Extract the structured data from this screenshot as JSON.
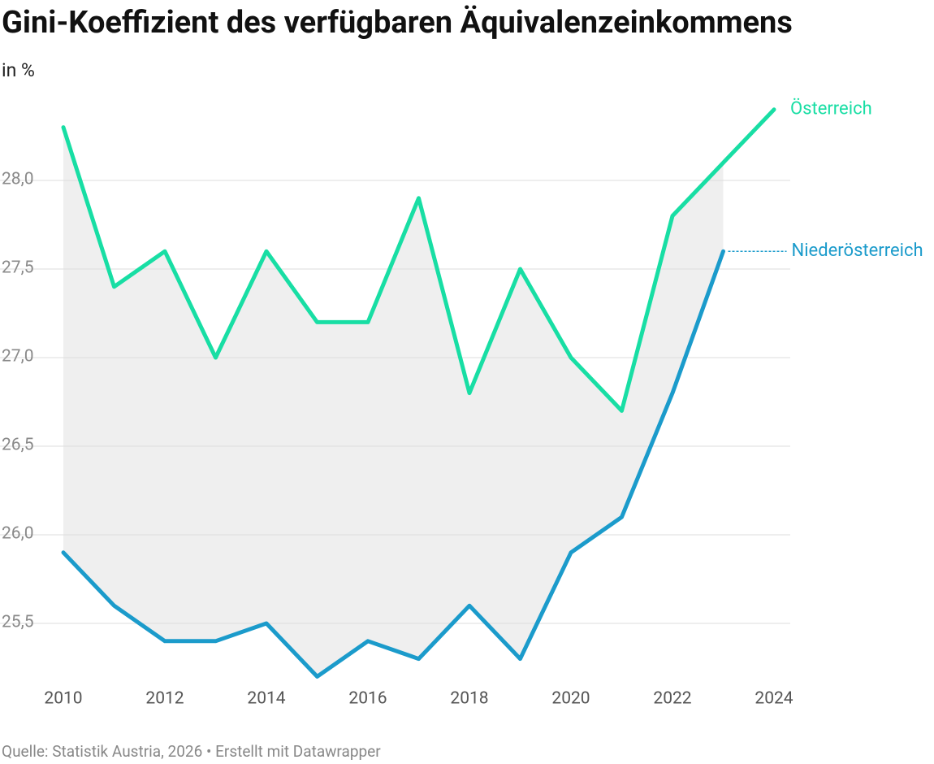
{
  "chart_data": {
    "type": "line",
    "title": "Gini-Koeffizient des verfügbaren Äquivalenzeinkommens",
    "subtitle": "in %",
    "source": "Quelle: Statistik Austria, 2026 • Erstellt mit Datawrapper",
    "x": [
      2010,
      2011,
      2012,
      2013,
      2014,
      2015,
      2016,
      2017,
      2018,
      2019,
      2020,
      2021,
      2022,
      2023,
      2024
    ],
    "series": [
      {
        "name": "Österreich",
        "color": "#18dea4",
        "values": [
          28.3,
          27.4,
          27.6,
          27.0,
          27.6,
          27.2,
          27.2,
          27.9,
          26.8,
          27.5,
          27.0,
          26.7,
          27.8,
          28.1,
          28.4
        ]
      },
      {
        "name": "Niederösterreich",
        "color": "#1b9bcb",
        "values": [
          25.9,
          25.6,
          25.4,
          25.4,
          25.5,
          25.2,
          25.4,
          25.3,
          25.6,
          25.3,
          25.9,
          26.1,
          26.8,
          27.6,
          null
        ]
      }
    ],
    "xlim": [
      2010,
      2024
    ],
    "xticks": [
      2010,
      2012,
      2014,
      2016,
      2018,
      2020,
      2022,
      2024
    ],
    "ylim": [
      25.15,
      28.5
    ],
    "yticks": [
      {
        "value": 25.5,
        "label": "25,5"
      },
      {
        "value": 26,
        "label": "26,0"
      },
      {
        "value": 26.5,
        "label": "26,5"
      },
      {
        "value": 27,
        "label": "27,0"
      },
      {
        "value": 27.5,
        "label": "27,5"
      },
      {
        "value": 28,
        "label": "28,0"
      }
    ],
    "grid": true,
    "range_fill": "#efefef"
  }
}
